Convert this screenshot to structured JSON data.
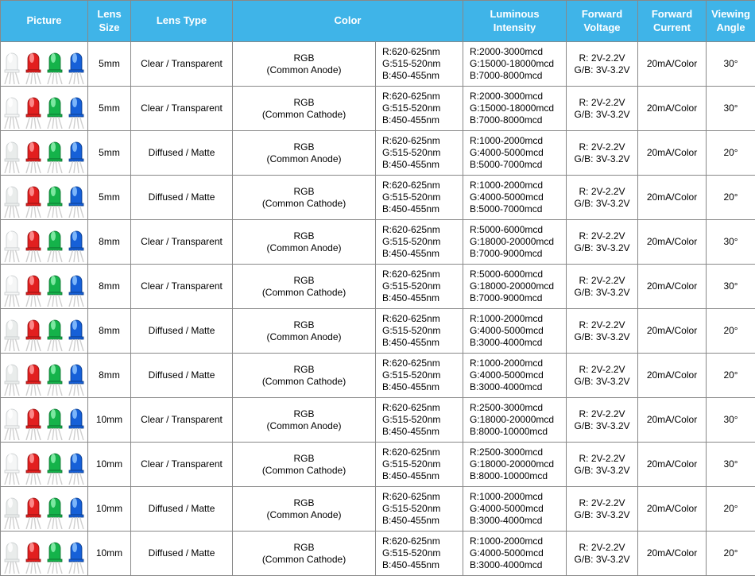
{
  "headers": {
    "picture": "Picture",
    "lens_size": "Lens\nSize",
    "lens_type": "Lens Type",
    "color": "Color",
    "luminous": "Luminous\nIntensity",
    "fv": "Forward\nVoltage",
    "fc": "Forward\nCurrent",
    "angle": "Viewing\nAngle"
  },
  "led_colors": {
    "clear": {
      "body": "#f5f6f6",
      "highlight": "#ffffff",
      "outline": "#c8ccce"
    },
    "frost": {
      "body": "#e9eceb",
      "highlight": "#ffffff",
      "outline": "#c8ccce"
    },
    "red": {
      "body": "#e21f1f",
      "highlight": "#ff9a9a",
      "outline": "#8a1010"
    },
    "green": {
      "body": "#14b34a",
      "highlight": "#8ef0b0",
      "outline": "#0a6b2c"
    },
    "blue": {
      "body": "#1660d8",
      "highlight": "#8ec4ff",
      "outline": "#0b3a86"
    }
  },
  "rows": [
    {
      "picture_set": "clear",
      "lens_size": "5mm",
      "lens_type": "Clear / Transparent",
      "color": "RGB\n(Common Anode)",
      "wavelength": "R:620-625nm\nG:515-520nm\nB:450-455nm",
      "luminous": "R:2000-3000mcd\nG:15000-18000mcd\nB:7000-8000mcd",
      "fv": "R: 2V-2.2V\nG/B: 3V-3.2V",
      "fc": "20mA/Color",
      "angle": "30°"
    },
    {
      "picture_set": "clear",
      "lens_size": "5mm",
      "lens_type": "Clear / Transparent",
      "color": "RGB\n(Common Cathode)",
      "wavelength": "R:620-625nm\nG:515-520nm\nB:450-455nm",
      "luminous": "R:2000-3000mcd\nG:15000-18000mcd\nB:7000-8000mcd",
      "fv": "R: 2V-2.2V\nG/B: 3V-3.2V",
      "fc": "20mA/Color",
      "angle": "30°"
    },
    {
      "picture_set": "frost",
      "lens_size": "5mm",
      "lens_type": "Diffused / Matte",
      "color": "RGB\n(Common Anode)",
      "wavelength": "R:620-625nm\nG:515-520nm\nB:450-455nm",
      "luminous": "R:1000-2000mcd\nG:4000-5000mcd\nB:5000-7000mcd",
      "fv": "R: 2V-2.2V\nG/B: 3V-3.2V",
      "fc": "20mA/Color",
      "angle": "20°"
    },
    {
      "picture_set": "frost",
      "lens_size": "5mm",
      "lens_type": "Diffused / Matte",
      "color": "RGB\n(Common Cathode)",
      "wavelength": "R:620-625nm\nG:515-520nm\nB:450-455nm",
      "luminous": "R:1000-2000mcd\nG:4000-5000mcd\nB:5000-7000mcd",
      "fv": "R: 2V-2.2V\nG/B: 3V-3.2V",
      "fc": "20mA/Color",
      "angle": "20°"
    },
    {
      "picture_set": "clear",
      "lens_size": "8mm",
      "lens_type": "Clear / Transparent",
      "color": "RGB\n(Common Anode)",
      "wavelength": "R:620-625nm\nG:515-520nm\nB:450-455nm",
      "luminous": "R:5000-6000mcd\nG:18000-20000mcd\nB:7000-9000mcd",
      "fv": "R: 2V-2.2V\nG/B: 3V-3.2V",
      "fc": "20mA/Color",
      "angle": "30°"
    },
    {
      "picture_set": "clear",
      "lens_size": "8mm",
      "lens_type": "Clear / Transparent",
      "color": "RGB\n(Common Cathode)",
      "wavelength": "R:620-625nm\nG:515-520nm\nB:450-455nm",
      "luminous": "R:5000-6000mcd\nG:18000-20000mcd\nB:7000-9000mcd",
      "fv": "R: 2V-2.2V\nG/B: 3V-3.2V",
      "fc": "20mA/Color",
      "angle": "30°"
    },
    {
      "picture_set": "frost",
      "lens_size": "8mm",
      "lens_type": "Diffused / Matte",
      "color": "RGB\n(Common Anode)",
      "wavelength": "R:620-625nm\nG:515-520nm\nB:450-455nm",
      "luminous": "R:1000-2000mcd\nG:4000-5000mcd\nB:3000-4000mcd",
      "fv": "R: 2V-2.2V\nG/B: 3V-3.2V",
      "fc": "20mA/Color",
      "angle": "20°"
    },
    {
      "picture_set": "frost",
      "lens_size": "8mm",
      "lens_type": "Diffused / Matte",
      "color": "RGB\n(Common Cathode)",
      "wavelength": "R:620-625nm\nG:515-520nm\nB:450-455nm",
      "luminous": "R:1000-2000mcd\nG:4000-5000mcd\nB:3000-4000mcd",
      "fv": "R: 2V-2.2V\nG/B: 3V-3.2V",
      "fc": "20mA/Color",
      "angle": "20°"
    },
    {
      "picture_set": "clear",
      "lens_size": "10mm",
      "lens_type": "Clear / Transparent",
      "color": "RGB\n(Common Anode)",
      "wavelength": "R:620-625nm\nG:515-520nm\nB:450-455nm",
      "luminous": "R:2500-3000mcd\nG:18000-20000mcd\nB:8000-10000mcd",
      "fv": "R: 2V-2.2V\nG/B: 3V-3.2V",
      "fc": "20mA/Color",
      "angle": "30°"
    },
    {
      "picture_set": "clear",
      "lens_size": "10mm",
      "lens_type": "Clear / Transparent",
      "color": "RGB\n(Common Cathode)",
      "wavelength": "R:620-625nm\nG:515-520nm\nB:450-455nm",
      "luminous": "R:2500-3000mcd\nG:18000-20000mcd\nB:8000-10000mcd",
      "fv": "R: 2V-2.2V\nG/B: 3V-3.2V",
      "fc": "20mA/Color",
      "angle": "30°"
    },
    {
      "picture_set": "frost",
      "lens_size": "10mm",
      "lens_type": "Diffused / Matte",
      "color": "RGB\n(Common Anode)",
      "wavelength": "R:620-625nm\nG:515-520nm\nB:450-455nm",
      "luminous": "R:1000-2000mcd\nG:4000-5000mcd\nB:3000-4000mcd",
      "fv": "R: 2V-2.2V\nG/B: 3V-3.2V",
      "fc": "20mA/Color",
      "angle": "20°"
    },
    {
      "picture_set": "frost",
      "lens_size": "10mm",
      "lens_type": "Diffused / Matte",
      "color": "RGB\n(Common Cathode)",
      "wavelength": "R:620-625nm\nG:515-520nm\nB:450-455nm",
      "luminous": "R:1000-2000mcd\nG:4000-5000mcd\nB:3000-4000mcd",
      "fv": "R: 2V-2.2V\nG/B: 3V-3.2V",
      "fc": "20mA/Color",
      "angle": "20°"
    }
  ]
}
